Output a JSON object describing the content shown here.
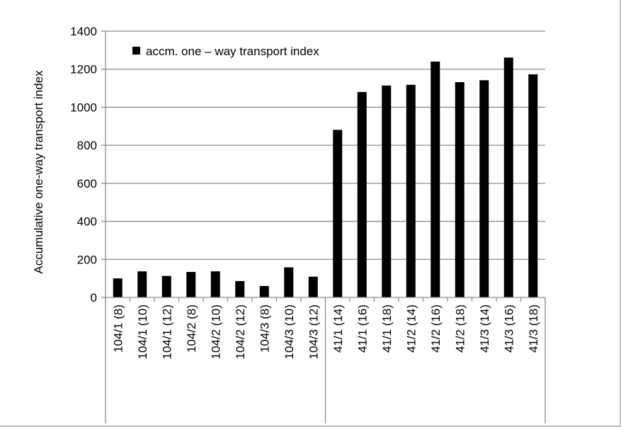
{
  "chart_data": {
    "type": "bar",
    "ylabel": "Accumulative one-way transport index",
    "xlabel": "",
    "ylim": [
      0,
      1400
    ],
    "yticks": [
      0,
      200,
      400,
      600,
      800,
      1000,
      1200,
      1400
    ],
    "grid": true,
    "legend_position": "top-left",
    "bar_color": "#000000",
    "series": [
      {
        "name": "accm. one – way transport index",
        "values": [
          100,
          137,
          113,
          134,
          137,
          86,
          60,
          158,
          109,
          881,
          1080,
          1114,
          1118,
          1240,
          1132,
          1142,
          1261,
          1173
        ]
      }
    ],
    "categories": [
      "104/1 (8)",
      "104/1 (10)",
      "104/1 (12)",
      "104/2 (8)",
      "104/2 (10)",
      "104/2 (12)",
      "104/3 (8)",
      "104/3 (10)",
      "104/3 (12)",
      "41/1 (14)",
      "41/1 (16)",
      "41/1 (18)",
      "41/2 (14)",
      "41/2 (16)",
      "41/2 (18)",
      "41/3 (14)",
      "41/3 (16)",
      "41/3 (18)"
    ],
    "group_separator_after_index": 8
  }
}
